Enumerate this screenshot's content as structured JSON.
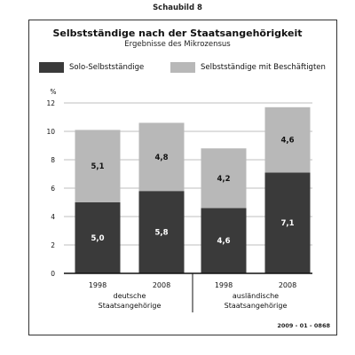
{
  "header": {
    "caption": "Schaubild 8"
  },
  "footer": {
    "code": "2009 - 01 - 0868"
  },
  "chart_data": {
    "type": "bar",
    "stacked": true,
    "title": "Selbstständige nach der Staatsangehörigkeit",
    "subtitle": "Ergebnisse des Mikrozensus",
    "ylabel": "%",
    "ylim": [
      0,
      12
    ],
    "yticks": [
      "0",
      "2",
      "4",
      "6",
      "8",
      "10",
      "12"
    ],
    "grid": true,
    "legend_position": "top",
    "categories": [
      "1998",
      "2008",
      "1998",
      "2008"
    ],
    "groups": [
      {
        "line1": "deutsche",
        "line2": "Staatsangehörige"
      },
      {
        "line1": "ausländische",
        "line2": "Staatsangehörige"
      }
    ],
    "series": [
      {
        "name": "Solo-Selbstständige",
        "color": "#3a3a3a",
        "values": [
          5.0,
          5.8,
          4.6,
          7.1
        ],
        "labels": [
          "5,0",
          "5,8",
          "4,6",
          "7,1"
        ]
      },
      {
        "name": "Selbstständige mit Beschäftigten",
        "color": "#b8b8b8",
        "values": [
          5.1,
          4.8,
          4.2,
          4.6
        ],
        "labels": [
          "5,1",
          "4,8",
          "4,2",
          "4,6"
        ]
      }
    ]
  }
}
